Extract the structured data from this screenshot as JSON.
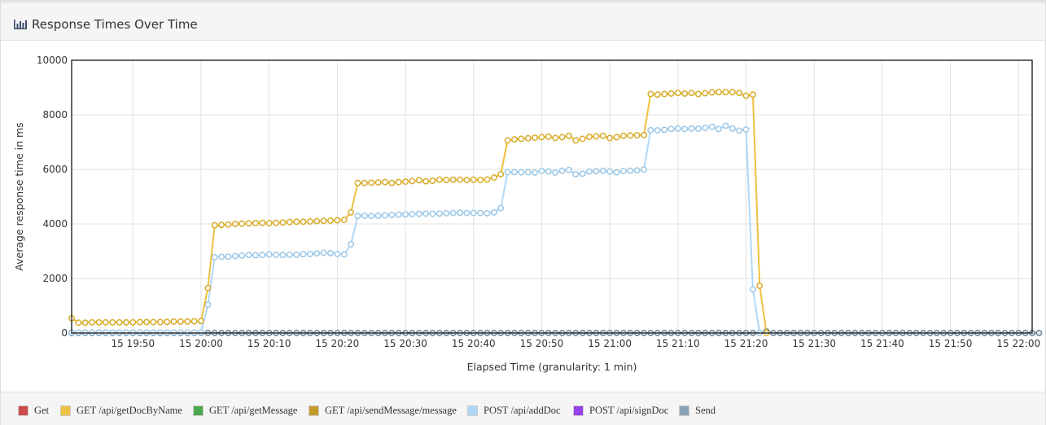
{
  "header": {
    "title": "Response Times Over Time"
  },
  "legend": {
    "items": [
      {
        "label": "Get",
        "color": "#cb4b4b"
      },
      {
        "label": "GET /api/getDocByName",
        "color": "#edc240"
      },
      {
        "label": "GET /api/getMessage",
        "color": "#4da74d"
      },
      {
        "label": "GET /api/sendMessage/message",
        "color": "#c49a28"
      },
      {
        "label": "POST /api/addDoc",
        "color": "#afd8f8"
      },
      {
        "label": "POST /api/signDoc",
        "color": "#9440ed"
      },
      {
        "label": "Send",
        "color": "#8aa3b8"
      }
    ]
  },
  "chart_data": {
    "type": "line",
    "title": "",
    "xlabel": "Elapsed Time (granularity: 1 min)",
    "ylabel": "Average response time in ms",
    "ylim": [
      0,
      10000
    ],
    "yticks": [
      0,
      2000,
      4000,
      6000,
      8000,
      10000
    ],
    "xlim": [
      "19:41",
      "22:02"
    ],
    "xtick_labels": [
      "15 19:50",
      "15 20:00",
      "15 20:10",
      "15 20:20",
      "15 20:30",
      "15 20:40",
      "15 20:50",
      "15 21:00",
      "15 21:10",
      "15 21:20",
      "15 21:30",
      "15 21:40",
      "15 21:50",
      "15 22:00"
    ],
    "grid": true,
    "legend_position": "bottom",
    "series": [
      {
        "name": "GET /api/getDocByName",
        "color": "#edc240",
        "x_start": "19:41",
        "x_step_min": 1,
        "values": [
          540,
          380,
          380,
          390,
          390,
          390,
          390,
          390,
          390,
          390,
          400,
          400,
          400,
          400,
          410,
          420,
          420,
          420,
          430,
          440,
          1650,
          3950,
          3960,
          3980,
          4000,
          4010,
          4020,
          4030,
          4040,
          4030,
          4040,
          4050,
          4070,
          4080,
          4080,
          4090,
          4100,
          4110,
          4120,
          4130,
          4150,
          4420,
          5500,
          5500,
          5510,
          5520,
          5530,
          5500,
          5530,
          5550,
          5570,
          5600,
          5560,
          5580,
          5620,
          5610,
          5620,
          5620,
          5610,
          5620,
          5610,
          5630,
          5700,
          5820,
          7060,
          7100,
          7120,
          7140,
          7160,
          7180,
          7200,
          7150,
          7180,
          7230,
          7060,
          7120,
          7190,
          7210,
          7230,
          7150,
          7180,
          7230,
          7240,
          7250,
          7260,
          8760,
          8740,
          8760,
          8780,
          8800,
          8780,
          8800,
          8760,
          8790,
          8820,
          8830,
          8830,
          8830,
          8800,
          8700,
          8740,
          1730,
          0
        ]
      },
      {
        "name": "POST /api/addDoc",
        "color": "#afd8f8",
        "x_start": "19:41",
        "x_step_min": 1,
        "values": [
          20,
          20,
          20,
          20,
          20,
          20,
          20,
          20,
          20,
          20,
          20,
          20,
          20,
          20,
          20,
          20,
          20,
          20,
          20,
          20,
          1040,
          2780,
          2790,
          2800,
          2820,
          2840,
          2860,
          2850,
          2860,
          2880,
          2870,
          2860,
          2870,
          2870,
          2890,
          2900,
          2920,
          2940,
          2930,
          2900,
          2880,
          3250,
          4290,
          4300,
          4290,
          4300,
          4310,
          4330,
          4340,
          4350,
          4360,
          4370,
          4380,
          4370,
          4380,
          4390,
          4400,
          4410,
          4400,
          4400,
          4400,
          4390,
          4420,
          4580,
          5900,
          5900,
          5890,
          5900,
          5880,
          5940,
          5920,
          5880,
          5950,
          5980,
          5820,
          5840,
          5920,
          5930,
          5950,
          5920,
          5890,
          5940,
          5950,
          5960,
          5990,
          7440,
          7430,
          7450,
          7480,
          7500,
          7480,
          7500,
          7490,
          7520,
          7560,
          7480,
          7600,
          7500,
          7420,
          7460,
          1600,
          0
        ]
      },
      {
        "name": "Send",
        "color": "#8aa3b8",
        "x_start": "19:41",
        "x_step_min": 1,
        "values": [
          0,
          0,
          0,
          0,
          0,
          0,
          0,
          0,
          0,
          0,
          0,
          0,
          0,
          0,
          0,
          0,
          0,
          0,
          0,
          0,
          0,
          0,
          0,
          0,
          0,
          0,
          0,
          0,
          0,
          0,
          0,
          0,
          0,
          0,
          0,
          0,
          0,
          0,
          0,
          0,
          0,
          0,
          0,
          0,
          0,
          0,
          0,
          0,
          0,
          0,
          0,
          0,
          0,
          0,
          0,
          0,
          0,
          0,
          0,
          0,
          0,
          0,
          0,
          0,
          0,
          0,
          0,
          0,
          0,
          0,
          0,
          0,
          0,
          0,
          0,
          0,
          0,
          0,
          0,
          0,
          0,
          0,
          0,
          0,
          0,
          0,
          0,
          0,
          0,
          0,
          0,
          0,
          0,
          0,
          0,
          0,
          0,
          0,
          0,
          0,
          0,
          0,
          60,
          0,
          0,
          0,
          0,
          0,
          0,
          0,
          0,
          0,
          0,
          0,
          0,
          0,
          0,
          0,
          0,
          0,
          0,
          0,
          0,
          0,
          0,
          0,
          0,
          0,
          0,
          0,
          0,
          0,
          0,
          0,
          0,
          0,
          0,
          0,
          0,
          0,
          0,
          0,
          0
        ]
      }
    ]
  }
}
